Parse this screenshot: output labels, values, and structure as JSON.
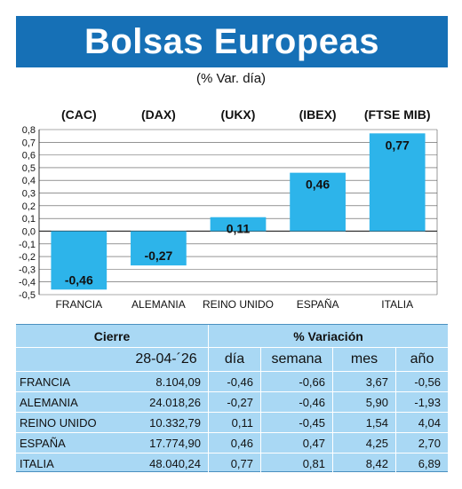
{
  "header": {
    "title": "Bolsas Europeas",
    "subtitle": "(% Var. día)"
  },
  "colors": {
    "banner": "#1670b6",
    "bar": "#2db4ea",
    "table_bg": "#a9d8f4"
  },
  "chart_data": {
    "type": "bar",
    "categories": [
      "FRANCIA",
      "ALEMANIA",
      "REINO UNIDO",
      "ESPAÑA",
      "ITALIA"
    ],
    "index_labels": [
      "(CAC)",
      "(DAX)",
      "(UKX)",
      "(IBEX)",
      "(FTSE MIB)"
    ],
    "values": [
      -0.46,
      -0.27,
      0.11,
      0.46,
      0.77
    ],
    "value_labels": [
      "-0,46",
      "-0,27",
      "0,11",
      "0,46",
      "0,77"
    ],
    "ylim": [
      -0.5,
      0.8
    ],
    "yticks": [
      "0,8",
      "0,7",
      "0,6",
      "0,5",
      "0,4",
      "0,3",
      "0,2",
      "0,1",
      "0,0",
      "-0,1",
      "-0,2",
      "-0,3",
      "-0,4",
      "-0,5"
    ],
    "grid": true
  },
  "table": {
    "header_cierre": "Cierre",
    "header_variacion": "% Variación",
    "date": "28-04-´26",
    "cols": [
      "día",
      "semana",
      "mes",
      "año"
    ],
    "rows": [
      {
        "name": "FRANCIA",
        "cierre": "8.104,09",
        "dia": "-0,46",
        "semana": "-0,66",
        "mes": "3,67",
        "ano": "-0,56"
      },
      {
        "name": "ALEMANIA",
        "cierre": "24.018,26",
        "dia": "-0,27",
        "semana": "-0,46",
        "mes": "5,90",
        "ano": "-1,93"
      },
      {
        "name": "REINO UNIDO",
        "cierre": "10.332,79",
        "dia": "0,11",
        "semana": "-0,45",
        "mes": "1,54",
        "ano": "4,04"
      },
      {
        "name": "ESPAÑA",
        "cierre": "17.774,90",
        "dia": "0,46",
        "semana": "0,47",
        "mes": "4,25",
        "ano": "2,70"
      },
      {
        "name": "ITALIA",
        "cierre": "48.040,24",
        "dia": "0,77",
        "semana": "0,81",
        "mes": "8,42",
        "ano": "6,89"
      }
    ]
  }
}
